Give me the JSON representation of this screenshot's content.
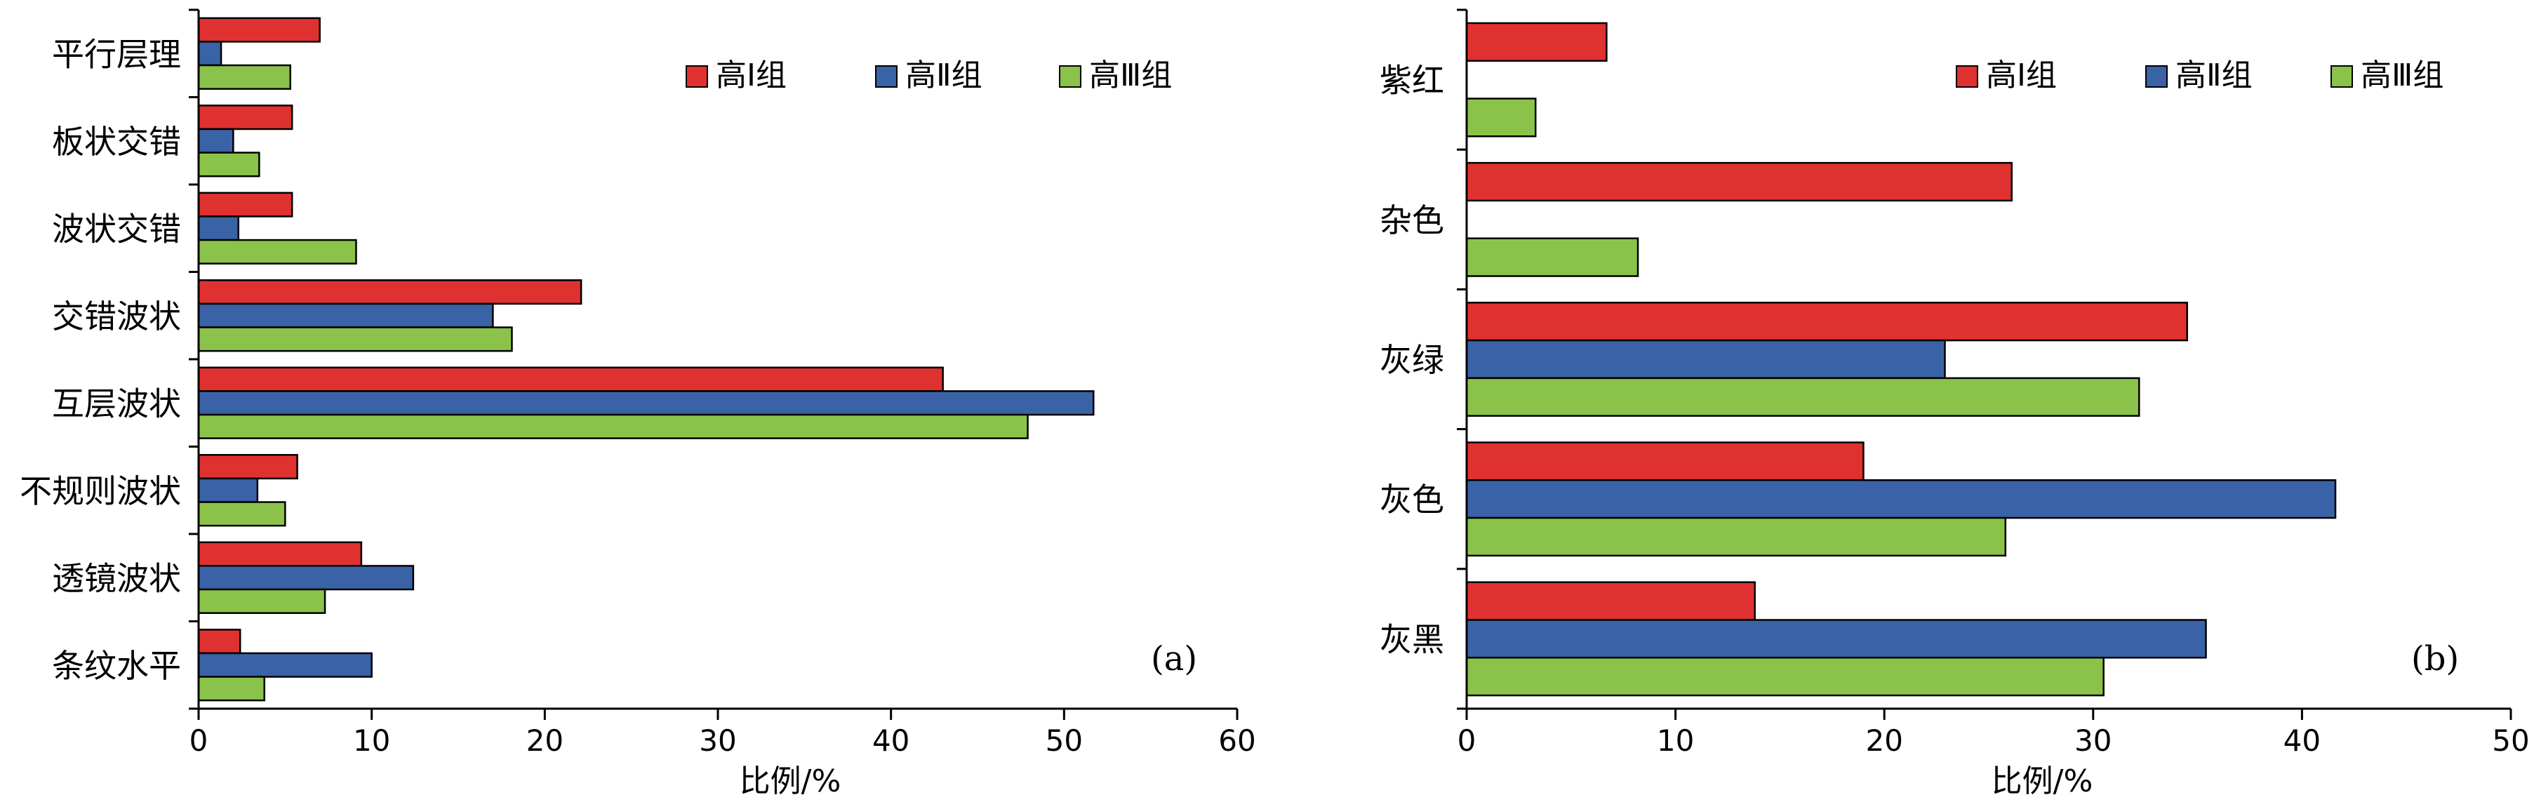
{
  "chart_data": [
    {
      "type": "bar",
      "orientation": "horizontal",
      "panel_label": "(a)",
      "xlabel": "比例/%",
      "ylabel": "",
      "xlim": [
        0,
        60
      ],
      "xticks": [
        0,
        10,
        20,
        30,
        40,
        50,
        60
      ],
      "categories": [
        "平行层理",
        "板状交错",
        "波状交错",
        "交错波状",
        "互层波状",
        "不规则波状",
        "透镜波状",
        "条纹水平"
      ],
      "series": [
        {
          "name": "高Ⅰ组",
          "color": "#e03131",
          "values": [
            7.0,
            5.4,
            5.4,
            22.1,
            43.0,
            5.7,
            9.4,
            2.4
          ]
        },
        {
          "name": "高Ⅱ组",
          "color": "#3a62a6",
          "values": [
            1.3,
            2.0,
            2.3,
            17.0,
            51.7,
            3.4,
            12.4,
            10.0
          ]
        },
        {
          "name": "高Ⅲ组",
          "color": "#8bc34a",
          "values": [
            5.3,
            3.5,
            9.1,
            18.1,
            47.9,
            5.0,
            7.3,
            3.8
          ]
        }
      ],
      "grid": false,
      "legend_position": "top-right"
    },
    {
      "type": "bar",
      "orientation": "horizontal",
      "panel_label": "(b)",
      "xlabel": "比例/%",
      "ylabel": "",
      "xlim": [
        0,
        50
      ],
      "xticks": [
        0,
        10,
        20,
        30,
        40,
        50
      ],
      "categories": [
        "紫红",
        "杂色",
        "灰绿",
        "灰色",
        "灰黑"
      ],
      "series": [
        {
          "name": "高Ⅰ组",
          "color": "#e03131",
          "values": [
            6.7,
            26.1,
            34.5,
            19.0,
            13.8
          ]
        },
        {
          "name": "高Ⅱ组",
          "color": "#3a62a6",
          "values": [
            0,
            0,
            22.9,
            41.6,
            35.4
          ]
        },
        {
          "name": "高Ⅲ组",
          "color": "#8bc34a",
          "values": [
            3.3,
            8.2,
            32.2,
            25.8,
            30.5
          ]
        }
      ],
      "grid": false,
      "legend_position": "top-right"
    }
  ]
}
